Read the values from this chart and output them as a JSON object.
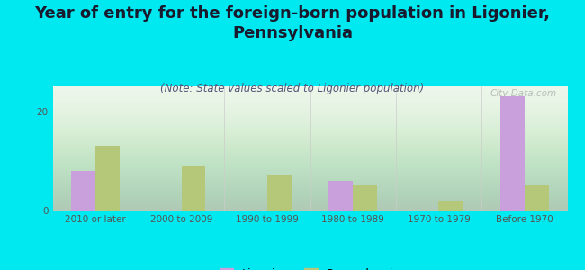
{
  "title": "Year of entry for the foreign-born population in Ligonier,\nPennsylvania",
  "subtitle": "(Note: State values scaled to Ligonier population)",
  "categories": [
    "2010 or later",
    "2000 to 2009",
    "1990 to 1999",
    "1980 to 1989",
    "1970 to 1979",
    "Before 1970"
  ],
  "ligonier_values": [
    8,
    0,
    0,
    6,
    0,
    23
  ],
  "pennsylvania_values": [
    13,
    9,
    7,
    5,
    2,
    5
  ],
  "ligonier_color": "#c9a0dc",
  "pennsylvania_color": "#b5c87a",
  "background_outer": "#00e8f0",
  "ylim": [
    0,
    25
  ],
  "yticks": [
    0,
    20
  ],
  "bar_width": 0.28,
  "title_fontsize": 13,
  "subtitle_fontsize": 8.5,
  "tick_fontsize": 7.5,
  "legend_fontsize": 9,
  "watermark": "City-Data.com"
}
